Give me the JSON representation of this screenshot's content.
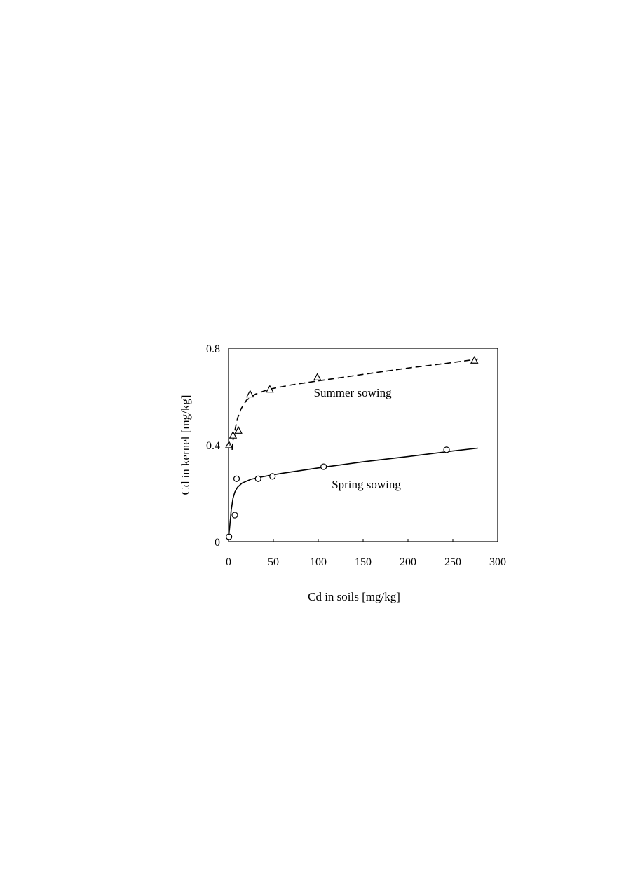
{
  "chart_data": {
    "type": "scatter",
    "xlabel": "Cd in soils [mg/kg]",
    "ylabel": "Cd in kernel [mg/kg]",
    "xlim": [
      0,
      300
    ],
    "ylim": [
      0,
      0.8
    ],
    "xticks": [
      0,
      50,
      100,
      150,
      200,
      250,
      300
    ],
    "xtick_labels": [
      "0",
      "50",
      "100",
      "150",
      "200",
      "250",
      "300"
    ],
    "yticks": [
      0,
      0.4,
      0.8
    ],
    "ytick_labels": [
      "0",
      "0.4",
      "0.8"
    ],
    "grid": false,
    "legend": "none",
    "annotations": [
      {
        "id": "summer",
        "text": "Summer sowing",
        "x": 95,
        "y": 0.6
      },
      {
        "id": "spring",
        "text": "Spring sowing",
        "x": 115,
        "y": 0.22
      }
    ],
    "series": [
      {
        "marker": "triangle",
        "line_style": "dashed",
        "points": [
          {
            "x": 0.5,
            "y": 0.4
          },
          {
            "x": 5,
            "y": 0.44
          },
          {
            "x": 11,
            "y": 0.46
          },
          {
            "x": 24,
            "y": 0.61
          },
          {
            "x": 46,
            "y": 0.63
          },
          {
            "x": 99,
            "y": 0.68
          },
          {
            "x": 274,
            "y": 0.75
          }
        ],
        "fit": [
          {
            "x": 4,
            "y": 0.38
          },
          {
            "x": 5,
            "y": 0.42
          },
          {
            "x": 7,
            "y": 0.46
          },
          {
            "x": 10,
            "y": 0.51
          },
          {
            "x": 14,
            "y": 0.55
          },
          {
            "x": 20,
            "y": 0.585
          },
          {
            "x": 30,
            "y": 0.61
          },
          {
            "x": 45,
            "y": 0.63
          },
          {
            "x": 70,
            "y": 0.648
          },
          {
            "x": 100,
            "y": 0.665
          },
          {
            "x": 150,
            "y": 0.692
          },
          {
            "x": 200,
            "y": 0.718
          },
          {
            "x": 250,
            "y": 0.741
          },
          {
            "x": 278,
            "y": 0.755
          }
        ]
      },
      {
        "marker": "circle",
        "line_style": "solid",
        "points": [
          {
            "x": 0.5,
            "y": 0.02
          },
          {
            "x": 7,
            "y": 0.11
          },
          {
            "x": 9,
            "y": 0.26
          },
          {
            "x": 33,
            "y": 0.26
          },
          {
            "x": 49,
            "y": 0.27
          },
          {
            "x": 106,
            "y": 0.31
          },
          {
            "x": 243,
            "y": 0.38
          }
        ],
        "fit": [
          {
            "x": 0,
            "y": 0.02
          },
          {
            "x": 1,
            "y": 0.05
          },
          {
            "x": 2,
            "y": 0.09
          },
          {
            "x": 3,
            "y": 0.13
          },
          {
            "x": 5,
            "y": 0.18
          },
          {
            "x": 7,
            "y": 0.205
          },
          {
            "x": 10,
            "y": 0.225
          },
          {
            "x": 15,
            "y": 0.242
          },
          {
            "x": 25,
            "y": 0.258
          },
          {
            "x": 40,
            "y": 0.27
          },
          {
            "x": 60,
            "y": 0.283
          },
          {
            "x": 100,
            "y": 0.305
          },
          {
            "x": 150,
            "y": 0.33
          },
          {
            "x": 200,
            "y": 0.352
          },
          {
            "x": 250,
            "y": 0.375
          },
          {
            "x": 278,
            "y": 0.387
          }
        ]
      }
    ]
  }
}
